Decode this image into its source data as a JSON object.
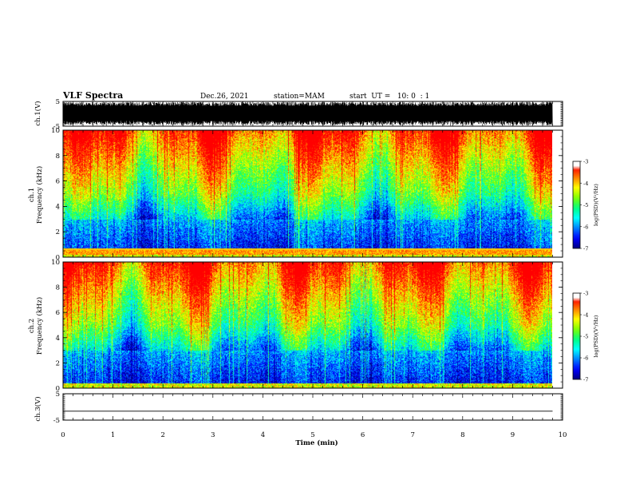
{
  "header": {
    "title": "VLF Spectra",
    "date": "Dec.26, 2021",
    "station": "station=MAM",
    "start": "start  UT =   10: 0  : 1"
  },
  "chart_data": [
    {
      "type": "line",
      "panel": "ch1-waveform",
      "ylabel": "ch.1(V)",
      "yticks": [
        "5",
        "-5"
      ],
      "ylim": [
        -5,
        5
      ],
      "xlim": [
        0,
        10
      ],
      "description_series": "dense VLF waveform filling approx -4.5 to 4.5 V"
    },
    {
      "type": "heatmap",
      "panel": "ch1-spectrogram",
      "ylabel": "ch.1 Frequency (kHz)",
      "yticks": [
        "0",
        "2",
        "4",
        "6",
        "8",
        "10"
      ],
      "ylim": [
        0,
        10
      ],
      "xlim": [
        0,
        9.8
      ],
      "colorbar": {
        "label": "log(PSD)(V²/Hz)",
        "ticks": [
          "-3",
          "-4",
          "-5",
          "-6",
          "-7"
        ],
        "range": [
          -7,
          -3
        ]
      }
    },
    {
      "type": "heatmap",
      "panel": "ch2-spectrogram",
      "ylabel": "ch.2 Frequency (kHz)",
      "yticks": [
        "0",
        "2",
        "4",
        "6",
        "8",
        "10"
      ],
      "ylim": [
        0,
        10
      ],
      "xlim": [
        0,
        9.8
      ],
      "colorbar": {
        "label": "log(PSD)(V²/Hz)",
        "ticks": [
          "-3",
          "-4",
          "-5",
          "-6",
          "-7"
        ],
        "range": [
          -7,
          -3
        ]
      }
    },
    {
      "type": "line",
      "panel": "ch3-waveform",
      "ylabel": "ch.3(V)",
      "yticks": [
        "5",
        "-5"
      ],
      "ylim": [
        -5,
        5
      ],
      "x": [
        0,
        9.8
      ],
      "y": [
        -1.6,
        -1.6
      ]
    }
  ],
  "xaxis": {
    "label": "Time (min)",
    "ticks": [
      "0",
      "1",
      "2",
      "3",
      "4",
      "5",
      "6",
      "7",
      "8",
      "9",
      "10"
    ]
  },
  "colors": {
    "ink": "#000000",
    "colormap": [
      "#000080",
      "#0000ff",
      "#0080ff",
      "#00ffff",
      "#00ff80",
      "#80ff00",
      "#ffff00",
      "#ff8000",
      "#ff0000",
      "#ffffff"
    ]
  }
}
